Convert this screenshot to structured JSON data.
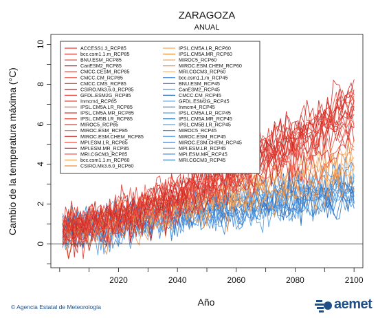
{
  "chart_data": {
    "type": "line",
    "title": "ZARAGOZA",
    "subtitle": "ANUAL",
    "xlabel": "Año",
    "ylabel": "Cambio de la temperatura máxima (°C)",
    "xlim": [
      1997,
      2103
    ],
    "ylim": [
      -1.2,
      10.5
    ],
    "xticks": [
      2020,
      2040,
      2060,
      2080,
      2100
    ],
    "yticks": [
      0,
      2,
      4,
      6,
      8,
      10
    ],
    "x_start": 2001,
    "x_end": 2100,
    "zero_line": true,
    "legend": {
      "placement": "top-left",
      "columns": 2
    },
    "scenarios": [
      {
        "name": "RCP85",
        "color": "#e0332a",
        "end_value": 6.5
      },
      {
        "name": "RCP60",
        "color": "#f2994a",
        "end_value": 3.6
      },
      {
        "name": "RCP45",
        "color": "#3a86d6",
        "end_value": 2.9
      }
    ],
    "series": [
      {
        "name": "ACCESS1.3_RCP85",
        "scenario": "RCP85",
        "color": "#e6342b"
      },
      {
        "name": "bcc.csm1.1.m_RCP85",
        "scenario": "RCP85",
        "color": "#d32a23"
      },
      {
        "name": "BNU.ESM_RCP85",
        "scenario": "RCP85",
        "color": "#ea4a3a"
      },
      {
        "name": "CanESM2_RCP85",
        "scenario": "RCP85",
        "color": "#c92522"
      },
      {
        "name": "CMCC.CESM_RCP85",
        "scenario": "RCP85",
        "color": "#e0382e"
      },
      {
        "name": "CMCC.CM_RCP85",
        "scenario": "RCP85",
        "color": "#f05a49"
      },
      {
        "name": "CMCC.CMS_RCP85",
        "scenario": "RCP85",
        "color": "#d9322a"
      },
      {
        "name": "CSIRO.Mk3.6.0_RCP85",
        "scenario": "RCP85",
        "color": "#b81f1c"
      },
      {
        "name": "GFDL.ESM2G_RCP85",
        "scenario": "RCP85",
        "color": "#e84336"
      },
      {
        "name": "Inmcm4_RCP85",
        "scenario": "RCP85",
        "color": "#d12c27"
      },
      {
        "name": "IPSL.CM5A.LR_RCP85",
        "scenario": "RCP85",
        "color": "#ef5240"
      },
      {
        "name": "IPSL.CM5A.MR_RCP85",
        "scenario": "RCP85",
        "color": "#c4231f"
      },
      {
        "name": "IPSL.CM5B.LR_RCP85",
        "scenario": "RCP85",
        "color": "#e23c30"
      },
      {
        "name": "MIROC5_RCP85",
        "scenario": "RCP85",
        "color": "#db352c"
      },
      {
        "name": "MIROC.ESM_RCP85",
        "scenario": "RCP85",
        "color": "#f0614e"
      },
      {
        "name": "MIROC.ESM.CHEM_RCP85",
        "scenario": "RCP85",
        "color": "#cc2824"
      },
      {
        "name": "MPI.ESM.LR_RCP85",
        "scenario": "RCP85",
        "color": "#e5402f"
      },
      {
        "name": "MPI.ESM.MR_RCP85",
        "scenario": "RCP85",
        "color": "#d6302a"
      },
      {
        "name": "MRI.CGCM3_RCP85",
        "scenario": "RCP85",
        "color": "#ec4d3c"
      },
      {
        "name": "bcc.csm1.1.m_RCP60",
        "scenario": "RCP60",
        "color": "#f39a4c"
      },
      {
        "name": "CSIRO.Mk3.6.0_RCP60",
        "scenario": "RCP60",
        "color": "#ee8a3a"
      },
      {
        "name": "IPSL.CM5A.LR_RCP60",
        "scenario": "RCP60",
        "color": "#f5a65a"
      },
      {
        "name": "IPSL.CM5A.MR_RCP60",
        "scenario": "RCP60",
        "color": "#e98234"
      },
      {
        "name": "MIROC5_RCP60",
        "scenario": "RCP60",
        "color": "#f4a050"
      },
      {
        "name": "MIROC.ESM.CHEM_RCP60",
        "scenario": "RCP60",
        "color": "#f08f40"
      },
      {
        "name": "MRI.CGCM3_RCP60",
        "scenario": "RCP60",
        "color": "#f7ad66"
      },
      {
        "name": "bcc.csm1.1.m_RCP45",
        "scenario": "RCP45",
        "color": "#3b87d8"
      },
      {
        "name": "BNU.ESM_RCP45",
        "scenario": "RCP45",
        "color": "#2f78c8"
      },
      {
        "name": "CanESM2_RCP45",
        "scenario": "RCP45",
        "color": "#4a95e0"
      },
      {
        "name": "CMCC.CM_RCP45",
        "scenario": "RCP45",
        "color": "#2a6fbd"
      },
      {
        "name": "GFDL.ESM2G_RCP45",
        "scenario": "RCP45",
        "color": "#5aa2e6"
      },
      {
        "name": "Inmcm4_RCP45",
        "scenario": "RCP45",
        "color": "#3580d0"
      },
      {
        "name": "IPSL.CM5A.LR_RCP45",
        "scenario": "RCP45",
        "color": "#4690dc"
      },
      {
        "name": "IPSL.CM5A.MR_RCP45",
        "scenario": "RCP45",
        "color": "#2c73c2"
      },
      {
        "name": "IPSL.CM5B.LR_RCP45",
        "scenario": "RCP45",
        "color": "#529ce3"
      },
      {
        "name": "MIROC5_RCP45",
        "scenario": "RCP45",
        "color": "#387ecf"
      },
      {
        "name": "MIROC.ESM_RCP45",
        "scenario": "RCP45",
        "color": "#4b98e2"
      },
      {
        "name": "MIROC.ESM.CHEM_RCP45",
        "scenario": "RCP45",
        "color": "#306fbf"
      },
      {
        "name": "MPI.ESM.LR_RCP45",
        "scenario": "RCP45",
        "color": "#5fa6e8"
      },
      {
        "name": "MPI.ESM.MR_RCP45",
        "scenario": "RCP45",
        "color": "#3d88d7"
      },
      {
        "name": "MRI.CGCM3_RCP45",
        "scenario": "RCP45",
        "color": "#2b6cb8"
      }
    ]
  },
  "footer": {
    "credit": "© Agencia Estatal de Meteorología",
    "brand": "aemet"
  },
  "colors": {
    "brand": "#1f4f86",
    "axis": "#111111"
  }
}
